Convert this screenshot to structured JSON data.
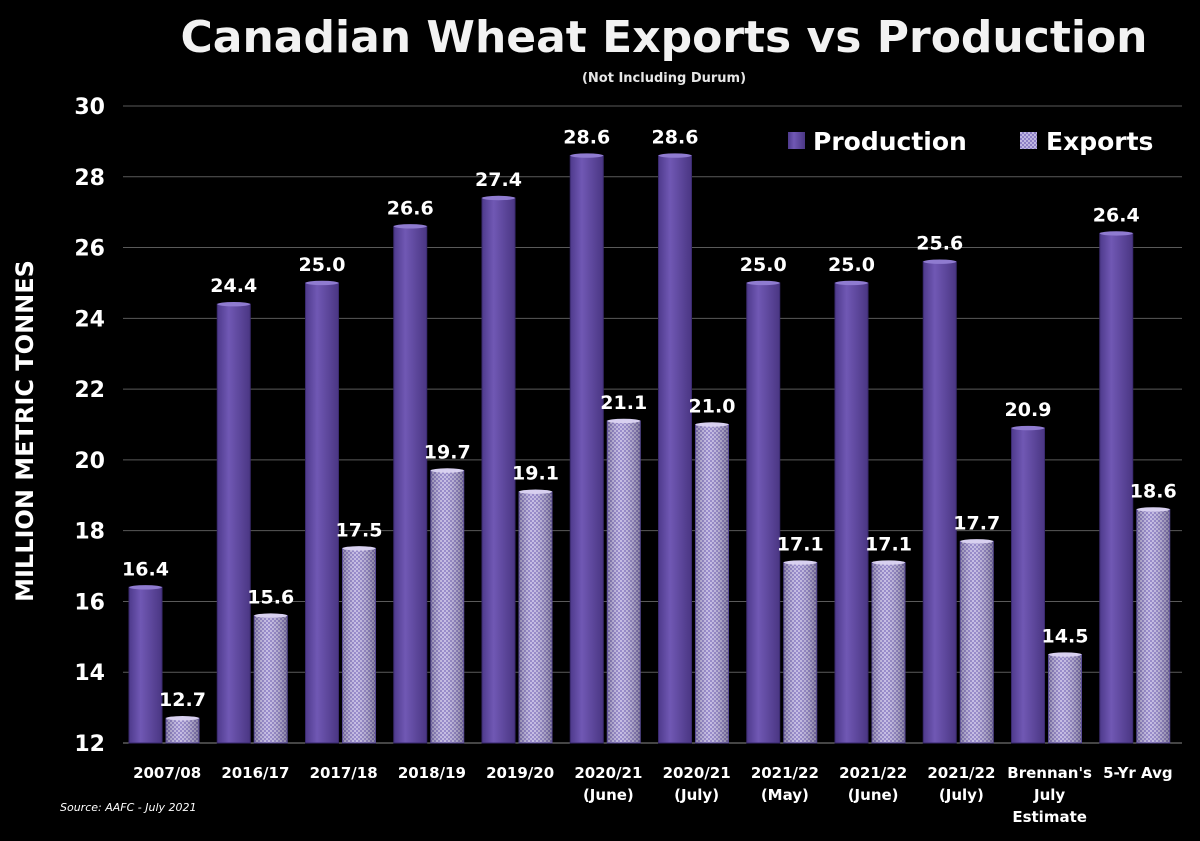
{
  "chart_data": {
    "type": "bar",
    "title": "Canadian Wheat Exports vs Production",
    "subtitle": "(Not Including Durum)",
    "ylabel": "MILLION METRIC TONNES",
    "xlabel": "",
    "ylim": [
      12,
      30
    ],
    "yticks": [
      12,
      14,
      16,
      18,
      20,
      22,
      24,
      26,
      28,
      30
    ],
    "grid": true,
    "legend_position": "top-right",
    "categories": [
      [
        "2007/08"
      ],
      [
        "2016/17"
      ],
      [
        "2017/18"
      ],
      [
        "2018/19"
      ],
      [
        "2019/20"
      ],
      [
        "2020/21",
        "(June)"
      ],
      [
        "2020/21",
        "(July)"
      ],
      [
        "2021/22",
        "(May)"
      ],
      [
        "2021/22",
        "(June)"
      ],
      [
        "2021/22",
        "(July)"
      ],
      [
        "Brennan's",
        "July",
        "Estimate"
      ],
      [
        "5-Yr Avg"
      ]
    ],
    "series": [
      {
        "name": "Production",
        "color": "#6a52a8",
        "values": [
          16.4,
          24.4,
          25.0,
          26.6,
          27.4,
          28.6,
          28.6,
          25.0,
          25.0,
          25.6,
          20.9,
          26.4
        ],
        "labels": [
          "16.4",
          "24.4",
          "25.0",
          "26.6",
          "27.4",
          "28.6",
          "28.6",
          "25.0",
          "25.0",
          "25.6",
          "20.9",
          "26.4"
        ]
      },
      {
        "name": "Exports",
        "color": "#b9aee0",
        "values": [
          12.7,
          15.6,
          17.5,
          19.7,
          19.1,
          21.1,
          21.0,
          17.1,
          17.1,
          17.7,
          14.5,
          18.6
        ],
        "labels": [
          "12.7",
          "15.6",
          "17.5",
          "19.7",
          "19.1",
          "21.1",
          "21.0",
          "17.1",
          "17.1",
          "17.7",
          "14.5",
          "18.6"
        ]
      }
    ],
    "source": "Source: AAFC - July 2021"
  }
}
